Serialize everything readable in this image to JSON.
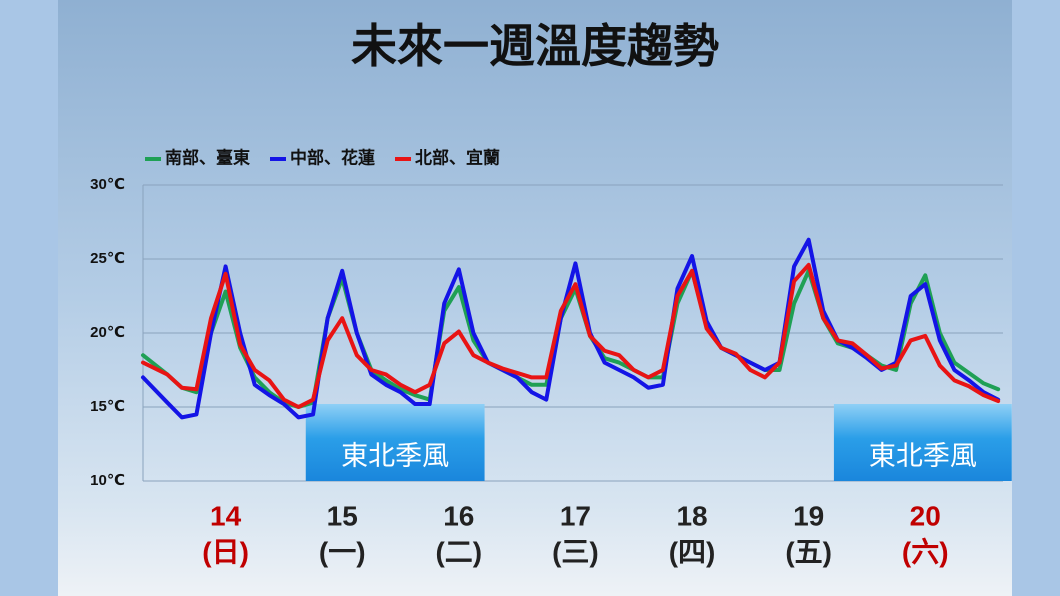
{
  "chart_data": {
    "type": "line",
    "title": "未來一週溫度趨勢",
    "x": [
      -5,
      0,
      3,
      6,
      9,
      12,
      15,
      18,
      21,
      24,
      27,
      30,
      33,
      36,
      39,
      42,
      45,
      48,
      51,
      54,
      57,
      60,
      63,
      66,
      69,
      72,
      75,
      78,
      81,
      84,
      87,
      90,
      93,
      96,
      99,
      102,
      105,
      108,
      111,
      114,
      117,
      120,
      123,
      126,
      129,
      132,
      135,
      138,
      141,
      144,
      147,
      150,
      153,
      156,
      159,
      162,
      165,
      168,
      171
    ],
    "xlim": [
      -5,
      172
    ],
    "xticks": [
      {
        "value": 12,
        "label": "14"
      },
      {
        "value": 36,
        "label": "15"
      },
      {
        "value": 60,
        "label": "16"
      },
      {
        "value": 84,
        "label": "17"
      },
      {
        "value": 108,
        "label": "18"
      },
      {
        "value": 132,
        "label": "19"
      },
      {
        "value": 156,
        "label": "20"
      }
    ],
    "xtick_sublabels": [
      "(日)",
      "(一)",
      "(二)",
      "(三)",
      "(四)",
      "(五)",
      "(六)"
    ],
    "xtick_colors": [
      "#c00000",
      "#222222",
      "#222222",
      "#222222",
      "#222222",
      "#222222",
      "#c00000"
    ],
    "ylim": [
      10,
      30
    ],
    "yticks": [
      {
        "value": 10,
        "label": "10℃"
      },
      {
        "value": 15,
        "label": "15℃"
      },
      {
        "value": 20,
        "label": "20℃"
      },
      {
        "value": 25,
        "label": "25℃"
      },
      {
        "value": 30,
        "label": "30℃"
      }
    ],
    "grid": true,
    "legend": "top-left",
    "series": [
      {
        "name": "南部、臺東",
        "color": "#1fa055",
        "values": [
          18.5,
          17.2,
          16.3,
          16,
          20,
          22.8,
          19,
          17,
          16,
          15.3,
          15,
          15.3,
          21,
          23.7,
          20,
          17.5,
          16.8,
          16.2,
          15.8,
          15.5,
          21.5,
          23.1,
          19.5,
          18,
          17.5,
          17,
          16.5,
          16.5,
          21,
          23,
          19.8,
          18.3,
          18,
          17.5,
          17,
          17,
          22,
          24.2,
          20.5,
          19,
          18.5,
          18,
          17.5,
          17.5,
          22,
          24.2,
          21,
          19.3,
          19,
          18.5,
          17.8,
          17.5,
          22,
          23.9,
          20,
          18,
          17.3,
          16.6,
          16.2
        ]
      },
      {
        "name": "中部、花蓮",
        "color": "#1414e6",
        "values": [
          17,
          15.3,
          14.3,
          14.5,
          20,
          24.5,
          20,
          16.5,
          15.8,
          15.2,
          14.3,
          14.5,
          21,
          24.2,
          20,
          17.2,
          16.5,
          16,
          15.2,
          15.2,
          22,
          24.3,
          20,
          18,
          17.5,
          17,
          16,
          15.5,
          21,
          24.7,
          20,
          18,
          17.5,
          17,
          16.3,
          16.5,
          23,
          25.2,
          20.8,
          19,
          18.5,
          18,
          17.5,
          18,
          24.5,
          26.3,
          21.5,
          19.5,
          19,
          18.3,
          17.5,
          18,
          22.5,
          23.3,
          19.5,
          17.5,
          16.8,
          16,
          15.5
        ]
      },
      {
        "name": "北部、宜蘭",
        "color": "#e81414",
        "values": [
          18,
          17.2,
          16.3,
          16.2,
          21,
          24,
          19.2,
          17.5,
          16.8,
          15.5,
          15,
          15.5,
          19.5,
          21,
          18.5,
          17.5,
          17.2,
          16.5,
          16,
          16.5,
          19.3,
          20.1,
          18.5,
          18,
          17.6,
          17.3,
          17,
          17,
          21.5,
          23.3,
          19.8,
          18.8,
          18.5,
          17.5,
          17,
          17.5,
          22.5,
          24.2,
          20.3,
          19,
          18.6,
          17.5,
          17,
          18,
          23.5,
          24.6,
          21,
          19.5,
          19.3,
          18.5,
          17.6,
          17.8,
          19.5,
          19.8,
          17.8,
          16.8,
          16.4,
          15.8,
          15.4
        ]
      }
    ],
    "annotations": [
      {
        "text": "東北季風",
        "x0": 28.5,
        "x1": 65.3
      },
      {
        "text": "東北季風",
        "x0": 137.2,
        "x1": 173.8
      }
    ]
  }
}
